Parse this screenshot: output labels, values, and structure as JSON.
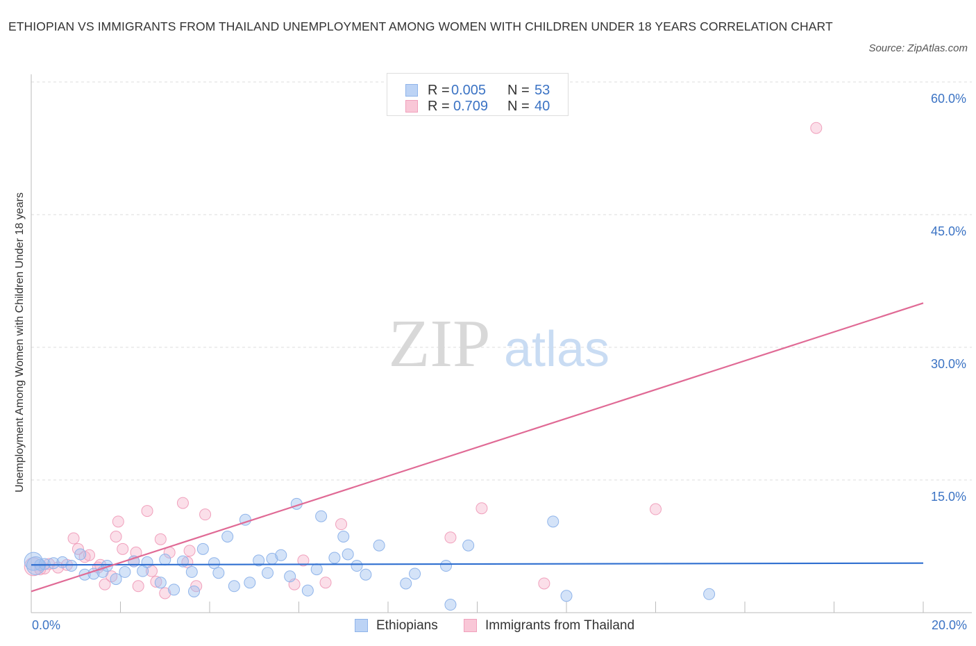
{
  "header": {
    "title": "ETHIOPIAN VS IMMIGRANTS FROM THAILAND UNEMPLOYMENT AMONG WOMEN WITH CHILDREN UNDER 18 YEARS CORRELATION CHART",
    "source": "Source: ZipAtlas.com"
  },
  "watermark": {
    "zip": "ZIP",
    "atlas": "atlas"
  },
  "colors": {
    "blue": "#8fb4ea",
    "blue_fill": "rgba(160,194,240,0.45)",
    "blue_line": "#2f6fd0",
    "pink": "#f0a0bc",
    "pink_fill": "rgba(244,176,200,0.40)",
    "pink_line": "#e06a95",
    "axis_text": "#3b73c4",
    "grid": "#dddddd"
  },
  "corr_box": {
    "r_label": "R =",
    "n_label": "N =",
    "rows": [
      {
        "r": "0.005",
        "n": "53"
      },
      {
        "r": "0.709",
        "n": "40"
      }
    ]
  },
  "legend": {
    "items": [
      {
        "label": "Ethiopians"
      },
      {
        "label": "Immigrants from Thailand"
      }
    ]
  },
  "chart_data": {
    "type": "scatter",
    "title": "ETHIOPIAN VS IMMIGRANTS FROM THAILAND UNEMPLOYMENT AMONG WOMEN WITH CHILDREN UNDER 18 YEARS CORRELATION CHART",
    "xlabel": "",
    "ylabel": "Unemployment Among Women with Children Under 18 years",
    "xlim": [
      0,
      20
    ],
    "ylim": [
      0,
      60
    ],
    "x_tick_labels": [
      "0.0%",
      "20.0%"
    ],
    "y_ticks": [
      15,
      30,
      45,
      60
    ],
    "y_tick_labels": [
      "15.0%",
      "30.0%",
      "45.0%",
      "60.0%"
    ],
    "grid": true,
    "legend_position": "bottom",
    "series": [
      {
        "name": "Ethiopians",
        "R": 0.005,
        "N": 53,
        "trend": {
          "x": [
            0,
            20
          ],
          "y": [
            5.4,
            5.6
          ]
        },
        "points": [
          [
            0.05,
            5.8
          ],
          [
            0.2,
            5.4
          ],
          [
            0.3,
            5.5
          ],
          [
            0.5,
            5.6
          ],
          [
            0.7,
            5.7
          ],
          [
            0.9,
            5.3
          ],
          [
            1.1,
            6.6
          ],
          [
            1.2,
            4.3
          ],
          [
            1.4,
            4.4
          ],
          [
            1.6,
            4.6
          ],
          [
            1.7,
            5.3
          ],
          [
            1.9,
            3.8
          ],
          [
            2.1,
            4.6
          ],
          [
            2.3,
            5.8
          ],
          [
            2.5,
            4.7
          ],
          [
            2.6,
            5.7
          ],
          [
            2.9,
            3.4
          ],
          [
            3.0,
            6.0
          ],
          [
            3.2,
            2.6
          ],
          [
            3.4,
            5.8
          ],
          [
            3.6,
            4.6
          ],
          [
            3.65,
            2.4
          ],
          [
            3.85,
            7.2
          ],
          [
            4.1,
            5.6
          ],
          [
            4.2,
            4.5
          ],
          [
            4.4,
            8.6
          ],
          [
            4.55,
            3.0
          ],
          [
            4.8,
            10.5
          ],
          [
            4.9,
            3.4
          ],
          [
            5.1,
            5.9
          ],
          [
            5.3,
            4.5
          ],
          [
            5.4,
            6.1
          ],
          [
            5.6,
            6.5
          ],
          [
            5.8,
            4.1
          ],
          [
            5.95,
            12.3
          ],
          [
            6.2,
            2.5
          ],
          [
            6.4,
            4.9
          ],
          [
            6.5,
            10.9
          ],
          [
            6.8,
            6.2
          ],
          [
            7.0,
            8.6
          ],
          [
            7.1,
            6.6
          ],
          [
            7.3,
            5.3
          ],
          [
            7.5,
            4.3
          ],
          [
            7.8,
            7.6
          ],
          [
            8.4,
            3.3
          ],
          [
            8.6,
            4.4
          ],
          [
            9.3,
            5.3
          ],
          [
            9.4,
            0.9
          ],
          [
            9.8,
            7.6
          ],
          [
            11.7,
            10.3
          ],
          [
            12.0,
            1.9
          ],
          [
            15.2,
            2.1
          ],
          [
            0.1,
            5.3
          ]
        ]
      },
      {
        "name": "Immigrants from Thailand",
        "R": 0.709,
        "N": 40,
        "trend": {
          "x": [
            0,
            20
          ],
          "y": [
            2.4,
            35.0
          ]
        },
        "points": [
          [
            0.05,
            5.2
          ],
          [
            0.2,
            4.9
          ],
          [
            0.4,
            5.5
          ],
          [
            0.6,
            5.1
          ],
          [
            0.8,
            5.4
          ],
          [
            0.95,
            8.4
          ],
          [
            1.05,
            7.2
          ],
          [
            1.2,
            6.3
          ],
          [
            1.3,
            6.5
          ],
          [
            1.5,
            5.1
          ],
          [
            1.55,
            5.4
          ],
          [
            1.65,
            3.2
          ],
          [
            1.8,
            4.1
          ],
          [
            1.9,
            8.6
          ],
          [
            1.95,
            10.3
          ],
          [
            2.05,
            7.2
          ],
          [
            2.3,
            5.8
          ],
          [
            2.35,
            6.8
          ],
          [
            2.4,
            3.0
          ],
          [
            2.6,
            11.5
          ],
          [
            2.7,
            4.7
          ],
          [
            2.8,
            3.5
          ],
          [
            2.9,
            8.3
          ],
          [
            3.0,
            2.2
          ],
          [
            3.1,
            6.8
          ],
          [
            3.4,
            12.4
          ],
          [
            3.5,
            5.7
          ],
          [
            3.55,
            7.0
          ],
          [
            3.7,
            3.0
          ],
          [
            3.9,
            11.1
          ],
          [
            5.9,
            3.2
          ],
          [
            6.1,
            5.9
          ],
          [
            6.6,
            3.4
          ],
          [
            6.95,
            10.0
          ],
          [
            9.4,
            8.5
          ],
          [
            10.1,
            11.8
          ],
          [
            11.5,
            3.3
          ],
          [
            14.0,
            11.7
          ],
          [
            17.6,
            54.8
          ],
          [
            0.3,
            5.0
          ]
        ]
      }
    ]
  }
}
